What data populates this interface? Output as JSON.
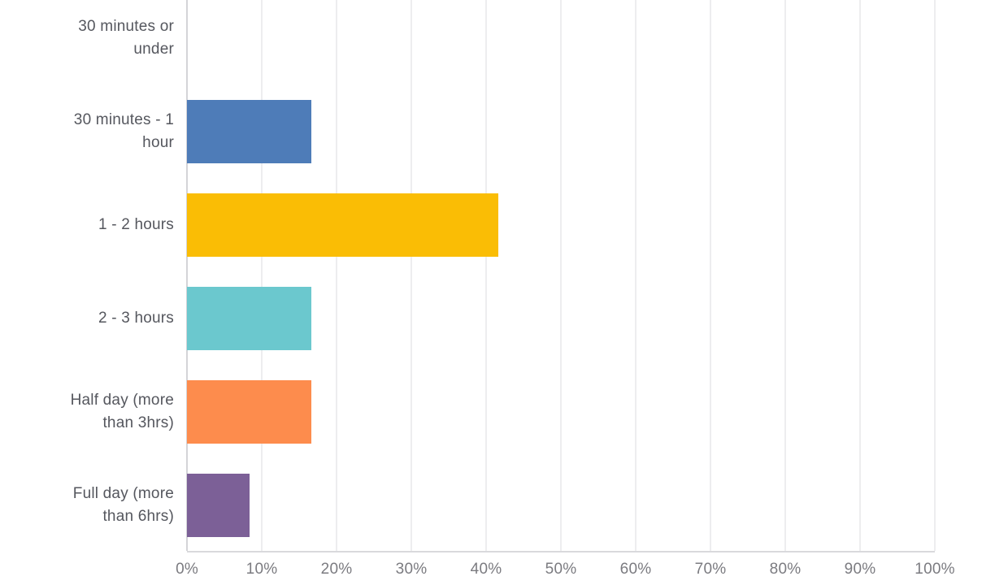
{
  "chart_data": {
    "type": "bar",
    "orientation": "horizontal",
    "title": "",
    "categories": [
      "30 minutes or under",
      "30 minutes - 1 hour",
      "1 - 2 hours",
      "2 - 3 hours",
      "Half day (more than 3hrs)",
      "Full day (more than 6hrs)"
    ],
    "category_display_lines": [
      [
        "30 minutes or",
        "under"
      ],
      [
        "30 minutes - 1",
        "hour"
      ],
      [
        "1 - 2 hours"
      ],
      [
        "2 - 3 hours"
      ],
      [
        "Half day (more",
        "than 3hrs)"
      ],
      [
        "Full day (more",
        "than 6hrs)"
      ]
    ],
    "values": [
      0,
      16.67,
      41.67,
      16.67,
      16.67,
      8.33
    ],
    "value_unit": "%",
    "bar_colors": [
      "",
      "#4e7cb8",
      "#fabd05",
      "#6bc8ce",
      "#fd8c4d",
      "#7c6097"
    ],
    "x_ticks": [
      "0%",
      "10%",
      "20%",
      "30%",
      "40%",
      "50%",
      "60%",
      "70%",
      "80%",
      "90%",
      "100%"
    ],
    "xlim": [
      0,
      100
    ],
    "grid": "vertical-only",
    "legend_position": "none"
  },
  "style_colors": {
    "background": "#ffffff",
    "category_label": "#55575e",
    "tick_label": "#7b7b80",
    "gridline": "#ededef",
    "zero_axis_line": "#d4d4d8",
    "plot_border": "#d9d9dc"
  }
}
